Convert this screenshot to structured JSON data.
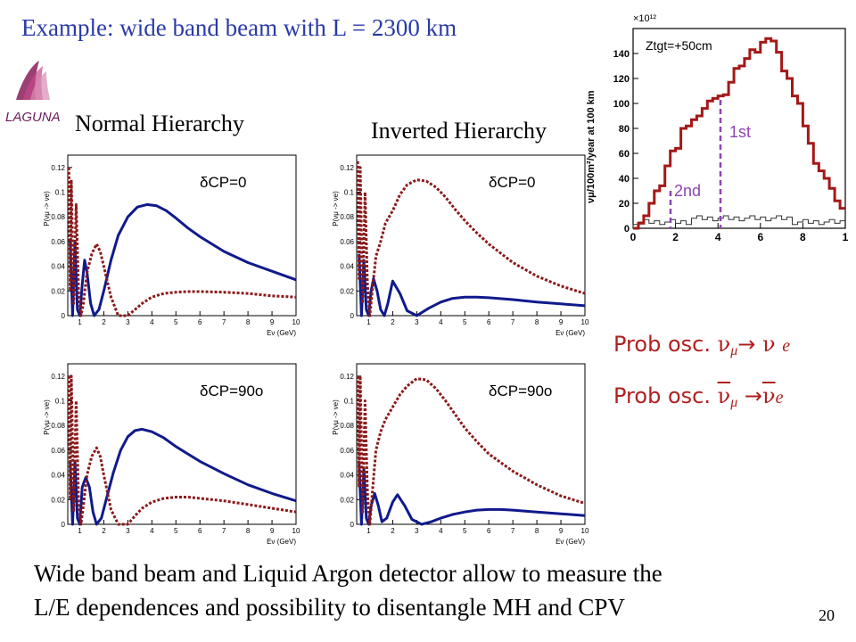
{
  "title": "Example: wide band beam with L = 2300 km",
  "logo": {
    "text": "LAGUNA"
  },
  "labels": {
    "normal": "Normal Hierarchy",
    "inverted": "Inverted Hierarchy"
  },
  "conclusion": {
    "line1": "Wide band beam and Liquid Argon detector allow to measure the",
    "line2": "L/E dependences and possibility to disentangle MH and CPV"
  },
  "page_number": "20",
  "legend": {
    "prefix": "Prob osc.",
    "nu_mu_e": {
      "nu": "ν",
      "mu": "μ",
      "arrow": "→",
      "e": "e"
    }
  },
  "colors": {
    "title": "#2a3aa8",
    "nu_curve": "#101a8c",
    "antinu_curve": "#8b1a1a",
    "flux_hist": "#a41818",
    "marker": "#8e44b5",
    "legend": "#b02020"
  },
  "flux_plot": {
    "exp_label": "×10¹²",
    "ylabel": "νμ/100m²/year at 100 km",
    "annotation": "Ztgt=+50cm",
    "peak1": "1st",
    "peak2": "2nd",
    "xticks": [
      "0",
      "2",
      "4",
      "6",
      "8",
      "1"
    ],
    "yticks": [
      "140",
      "120",
      "100",
      "80",
      "60",
      "40",
      "20",
      "0"
    ]
  },
  "chart_data": [
    {
      "type": "line",
      "title": "Normal Hierarchy, δCP=0",
      "annotation": "δCP=0",
      "xlabel": "Eν (GeV)",
      "ylabel": "P(νμ -> νe)",
      "xlim": [
        0.5,
        10
      ],
      "ylim": [
        0,
        0.13
      ],
      "xticks": [
        "1",
        "2",
        "3",
        "4",
        "5",
        "6",
        "7",
        "8",
        "9",
        "10"
      ],
      "yticks": [
        "0",
        "0.02",
        "0.04",
        "0.06",
        "0.08",
        "0.1",
        "0.12"
      ],
      "series": [
        {
          "style": "solid",
          "x": [
            0.6,
            0.7,
            0.8,
            0.9,
            1.0,
            1.1,
            1.2,
            1.3,
            1.45,
            1.6,
            1.8,
            2.0,
            2.3,
            2.6,
            3.0,
            3.4,
            3.8,
            4.2,
            4.6,
            5.0,
            5.5,
            6,
            7,
            8,
            9,
            10
          ],
          "y": [
            0.06,
            0,
            0.06,
            0.005,
            0,
            0.025,
            0.045,
            0.035,
            0.01,
            0,
            0.005,
            0.02,
            0.045,
            0.065,
            0.08,
            0.088,
            0.09,
            0.089,
            0.085,
            0.079,
            0.071,
            0.064,
            0.052,
            0.043,
            0.036,
            0.029
          ]
        },
        {
          "style": "dotted",
          "x": [
            0.55,
            0.6,
            0.65,
            0.75,
            0.85,
            0.95,
            1.05,
            1.15,
            1.3,
            1.5,
            1.7,
            1.85,
            2.0,
            2.3,
            2.6,
            3.0,
            3.3,
            3.6,
            4.0,
            4.5,
            5,
            5.5,
            6,
            7,
            8,
            9,
            10
          ],
          "y": [
            0.12,
            0.02,
            0.11,
            0.01,
            0.09,
            0.02,
            0,
            0.01,
            0.035,
            0.05,
            0.058,
            0.052,
            0.04,
            0.015,
            0,
            0,
            0.005,
            0.01,
            0.015,
            0.018,
            0.019,
            0.0195,
            0.0195,
            0.019,
            0.018,
            0.016,
            0.015
          ]
        }
      ]
    },
    {
      "type": "line",
      "title": "Inverted Hierarchy, δCP=0",
      "annotation": "δCP=0",
      "xlabel": "Eν (GeV)",
      "ylabel": "P(νμ -> νe)",
      "xlim": [
        0.5,
        10
      ],
      "ylim": [
        0,
        0.13
      ],
      "xticks": [
        "1",
        "2",
        "3",
        "4",
        "5",
        "6",
        "7",
        "8",
        "9",
        "10"
      ],
      "yticks": [
        "0",
        "0.02",
        "0.04",
        "0.06",
        "0.08",
        "0.1",
        "0.12"
      ],
      "series": [
        {
          "style": "solid",
          "x": [
            0.6,
            0.7,
            0.8,
            0.9,
            1.0,
            1.1,
            1.2,
            1.35,
            1.5,
            1.65,
            1.8,
            2.0,
            2.3,
            2.6,
            3.0,
            3.5,
            4,
            4.5,
            5,
            5.5,
            6,
            7,
            8,
            9,
            10
          ],
          "y": [
            0.05,
            0,
            0.045,
            0.005,
            0,
            0.02,
            0.03,
            0.02,
            0.005,
            0,
            0.01,
            0.028,
            0.018,
            0.004,
            0,
            0.006,
            0.011,
            0.014,
            0.015,
            0.015,
            0.0145,
            0.013,
            0.011,
            0.0095,
            0.008
          ]
        },
        {
          "style": "dotted",
          "x": [
            0.55,
            0.6,
            0.65,
            0.75,
            0.85,
            0.95,
            1.05,
            1.15,
            1.3,
            1.5,
            1.7,
            2.0,
            2.3,
            2.6,
            3.0,
            3.4,
            3.8,
            4.2,
            4.6,
            5,
            5.5,
            6,
            7,
            8,
            9,
            10
          ],
          "y": [
            0.125,
            0.03,
            0.12,
            0.01,
            0.1,
            0.025,
            0,
            0.02,
            0.048,
            0.06,
            0.075,
            0.085,
            0.098,
            0.106,
            0.11,
            0.109,
            0.104,
            0.096,
            0.086,
            0.077,
            0.067,
            0.058,
            0.043,
            0.032,
            0.024,
            0.018
          ]
        }
      ]
    },
    {
      "type": "line",
      "title": "Normal Hierarchy, δCP=90°",
      "annotation": "δCP=90o",
      "xlabel": "Eν (GeV)",
      "ylabel": "P(νμ -> νe)",
      "xlim": [
        0.5,
        10
      ],
      "ylim": [
        0,
        0.13
      ],
      "xticks": [
        "1",
        "2",
        "3",
        "4",
        "5",
        "6",
        "7",
        "8",
        "9",
        "10"
      ],
      "yticks": [
        "0",
        "0.02",
        "0.04",
        "0.06",
        "0.08",
        "0.1",
        "0.12"
      ],
      "series": [
        {
          "style": "solid",
          "x": [
            0.6,
            0.7,
            0.8,
            0.9,
            1.0,
            1.1,
            1.25,
            1.4,
            1.55,
            1.7,
            1.9,
            2.1,
            2.4,
            2.7,
            3.0,
            3.3,
            3.6,
            4,
            4.5,
            5,
            5.5,
            6,
            7,
            8,
            9,
            10
          ],
          "y": [
            0.05,
            0,
            0.05,
            0.005,
            0,
            0.03,
            0.038,
            0.03,
            0.01,
            0,
            0.005,
            0.02,
            0.042,
            0.06,
            0.071,
            0.076,
            0.077,
            0.075,
            0.07,
            0.063,
            0.057,
            0.051,
            0.041,
            0.032,
            0.025,
            0.019
          ]
        },
        {
          "style": "dotted",
          "x": [
            0.55,
            0.6,
            0.65,
            0.75,
            0.85,
            0.95,
            1.05,
            1.15,
            1.3,
            1.5,
            1.7,
            1.85,
            2.0,
            2.3,
            2.6,
            3.0,
            3.3,
            3.6,
            4.0,
            4.5,
            5,
            5.5,
            6,
            7,
            8,
            9,
            10
          ],
          "y": [
            0.12,
            0.02,
            0.12,
            0.01,
            0.1,
            0.02,
            0,
            0.015,
            0.04,
            0.055,
            0.062,
            0.055,
            0.04,
            0.012,
            0,
            0,
            0.007,
            0.013,
            0.018,
            0.021,
            0.022,
            0.022,
            0.021,
            0.019,
            0.016,
            0.013,
            0.01
          ]
        }
      ]
    },
    {
      "type": "line",
      "title": "Inverted Hierarchy, δCP=90°",
      "annotation": "δCP=90o",
      "xlabel": "Eν (GeV)",
      "ylabel": "P(νμ -> νe)",
      "xlim": [
        0.5,
        10
      ],
      "ylim": [
        0,
        0.13
      ],
      "xticks": [
        "1",
        "2",
        "3",
        "4",
        "5",
        "6",
        "7",
        "8",
        "9",
        "10"
      ],
      "yticks": [
        "0",
        "0.02",
        "0.04",
        "0.06",
        "0.08",
        "0.1",
        "0.12"
      ],
      "series": [
        {
          "style": "solid",
          "x": [
            0.6,
            0.7,
            0.8,
            0.9,
            1.0,
            1.1,
            1.25,
            1.4,
            1.55,
            1.75,
            2.0,
            2.2,
            2.5,
            2.8,
            3.2,
            3.6,
            4,
            4.5,
            5,
            5.5,
            6,
            6.5,
            7,
            8,
            9,
            10
          ],
          "y": [
            0.05,
            0,
            0.045,
            0.005,
            0,
            0.015,
            0.025,
            0.015,
            0.002,
            0.005,
            0.018,
            0.024,
            0.015,
            0.004,
            0,
            0.002,
            0.005,
            0.008,
            0.01,
            0.0115,
            0.012,
            0.012,
            0.0115,
            0.01,
            0.0085,
            0.007
          ]
        },
        {
          "style": "dotted",
          "x": [
            0.55,
            0.6,
            0.65,
            0.75,
            0.85,
            0.95,
            1.05,
            1.15,
            1.3,
            1.5,
            1.7,
            2.0,
            2.3,
            2.6,
            3.0,
            3.4,
            3.8,
            4.2,
            4.6,
            5,
            5.5,
            6,
            7,
            8,
            9,
            10
          ],
          "y": [
            0.12,
            0.03,
            0.12,
            0.01,
            0.1,
            0.025,
            0,
            0.025,
            0.06,
            0.075,
            0.085,
            0.095,
            0.105,
            0.112,
            0.118,
            0.117,
            0.11,
            0.1,
            0.089,
            0.078,
            0.067,
            0.057,
            0.043,
            0.032,
            0.023,
            0.017
          ]
        }
      ]
    }
  ]
}
